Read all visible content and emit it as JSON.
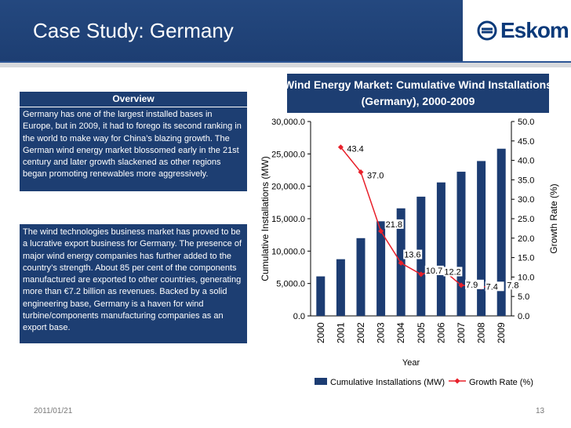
{
  "header": {
    "title": "Case Study: Germany",
    "logo_text": "Eskom"
  },
  "overview": {
    "heading": "Overview",
    "paragraph1": "Germany has one of the largest installed bases in Europe, but in 2009, it had to forego its second ranking in the world to make way for China’s blazing growth. The German wind energy market blossomed early in the 21st century and later growth slackened as other regions began promoting renewables more aggressively.",
    "paragraph2": "The wind technologies business market has proved to be a lucrative export business for Germany. The presence of major wind energy companies has further added to the country’s strength. About 85 per cent of the components manufactured are exported to other countries, generating more than €7.2 billion as revenues. Backed by a solid engineering base, Germany is a haven for wind turbine/components manufacturing companies as an export base."
  },
  "footer": {
    "date": "2011/01/21",
    "page_number": "13"
  },
  "colors": {
    "brand_blue": "#1d3e72",
    "bar": "#1c3c72",
    "line": "#e8202a"
  },
  "chart_data": {
    "type": "bar",
    "title_line1": "Wind Energy Market: Cumulative Wind Installations",
    "title_line2": "(Germany), 2000-2009",
    "categories": [
      "2000",
      "2001",
      "2002",
      "2003",
      "2004",
      "2005",
      "2006",
      "2007",
      "2008",
      "2009"
    ],
    "xlabel": "Year",
    "ylabel": "Cumulative Installations (MW)",
    "y2label": "Growth Rate (%)",
    "ylim": [
      0,
      30000
    ],
    "y2lim": [
      0,
      50
    ],
    "y_ticks": [
      "0.0",
      "5,000.0",
      "10,000.0",
      "15,000.0",
      "20,000.0",
      "25,000.0",
      "30,000.0"
    ],
    "y2_ticks": [
      "0.0",
      "5.0",
      "10.0",
      "15.0",
      "20.0",
      "25.0",
      "30.0",
      "35.0",
      "40.0",
      "45.0",
      "50.0"
    ],
    "series": [
      {
        "name": "Cumulative Installations (MW)",
        "kind": "bar",
        "values": [
          6100,
          8750,
          12000,
          14600,
          16600,
          18400,
          20600,
          22250,
          23900,
          25800
        ]
      },
      {
        "name": "Growth Rate (%)",
        "kind": "line",
        "values": [
          null,
          43.4,
          37.0,
          21.8,
          13.6,
          10.7,
          12.2,
          7.9,
          7.4,
          7.8
        ],
        "labels": [
          "",
          "43.4",
          "37.0",
          "21.8",
          "13.6",
          "10.7",
          "12.2",
          "7.9",
          "7.4",
          "7.8"
        ]
      }
    ],
    "legend": [
      "Cumulative Installations (MW)",
      "Growth Rate (%)"
    ],
    "legend_position": "bottom"
  }
}
